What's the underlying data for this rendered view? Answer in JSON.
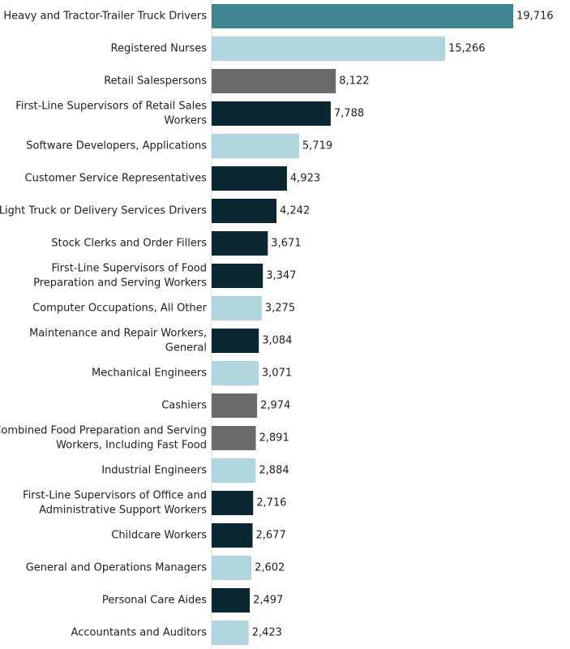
{
  "chart_data": {
    "type": "bar",
    "orientation": "horizontal",
    "categories": [
      "Heavy and Tractor-Trailer Truck Drivers",
      "Registered Nurses",
      "Retail Salespersons",
      "First-Line Supervisors of Retail Sales Workers",
      "Software Developers, Applications",
      "Customer Service Representatives",
      "Light Truck or Delivery Services Drivers",
      "Stock Clerks and Order Fillers",
      "First-Line Supervisors of Food Preparation and Serving Workers",
      "Computer Occupations, All Other",
      "Maintenance and Repair Workers, General",
      "Mechanical Engineers",
      "Cashiers",
      "Combined Food Preparation and Serving Workers, Including Fast Food",
      "Industrial Engineers",
      "First-Line Supervisors of Office and Administrative Support Workers",
      "Childcare Workers",
      "General and Operations Managers",
      "Personal Care Aides",
      "Accountants and Auditors"
    ],
    "label_lines": [
      [
        "Heavy and Tractor-Trailer Truck Drivers"
      ],
      [
        "Registered Nurses"
      ],
      [
        "Retail Salespersons"
      ],
      [
        "First-Line Supervisors of Retail Sales",
        "Workers"
      ],
      [
        "Software Developers, Applications"
      ],
      [
        "Customer Service Representatives"
      ],
      [
        "Light Truck or Delivery Services Drivers"
      ],
      [
        "Stock Clerks and Order Fillers"
      ],
      [
        "First-Line Supervisors of Food",
        "Preparation and Serving Workers"
      ],
      [
        "Computer Occupations, All Other"
      ],
      [
        "Maintenance and Repair Workers,",
        "General"
      ],
      [
        "Mechanical Engineers"
      ],
      [
        "Cashiers"
      ],
      [
        "Combined Food Preparation and Serving",
        "Workers, Including Fast Food"
      ],
      [
        "Industrial Engineers"
      ],
      [
        "First-Line Supervisors of Office and",
        "Administrative Support Workers"
      ],
      [
        "Childcare Workers"
      ],
      [
        "General and Operations Managers"
      ],
      [
        "Personal Care Aides"
      ],
      [
        "Accountants and Auditors"
      ]
    ],
    "values": [
      19716,
      15266,
      8122,
      7788,
      5719,
      4923,
      4242,
      3671,
      3347,
      3275,
      3084,
      3071,
      2974,
      2891,
      2884,
      2716,
      2677,
      2602,
      2497,
      2423
    ],
    "value_labels": [
      "19,716",
      "15,266",
      "8,122",
      "7,788",
      "5,719",
      "4,923",
      "4,242",
      "3,671",
      "3,347",
      "3,275",
      "3,084",
      "3,071",
      "2,974",
      "2,891",
      "2,884",
      "2,716",
      "2,677",
      "2,602",
      "2,497",
      "2,423"
    ],
    "bar_colors": [
      "#3f8590",
      "#b1d5dd",
      "#6b6b6b",
      "#0b2832",
      "#b1d5dd",
      "#0b2832",
      "#0b2832",
      "#0b2832",
      "#0b2832",
      "#b1d5dd",
      "#0b2832",
      "#b1d5dd",
      "#6b6b6b",
      "#6b6b6b",
      "#b1d5dd",
      "#0b2832",
      "#0b2832",
      "#b1d5dd",
      "#0b2832",
      "#b1d5dd"
    ],
    "xlim": [
      0,
      19716
    ],
    "title": "",
    "xlabel": "",
    "ylabel": "",
    "grid": false,
    "legend": "none"
  }
}
